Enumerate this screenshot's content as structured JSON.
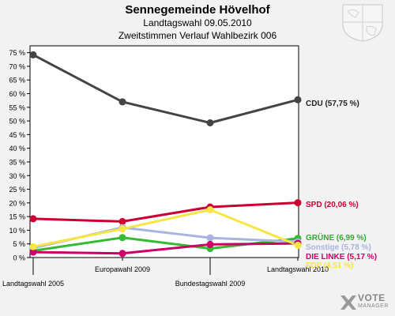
{
  "header": {
    "title": "Sennegemeinde Hövelhof",
    "subtitle": "Landtagswahl 09.05.2010",
    "subtitle2": "Zweitstimmen Verlauf Wahlbezirk 006"
  },
  "logo": {
    "line1": "VOTE",
    "line2": "MANAGER"
  },
  "chart_data": {
    "type": "line",
    "categories": [
      "Landtagswahl 2005",
      "Europawahl 2009",
      "Bundestagswahl 2009",
      "Landtagswahl 2010"
    ],
    "ylim": [
      0,
      77.5
    ],
    "yticks": [
      0,
      5,
      10,
      15,
      20,
      25,
      30,
      35,
      40,
      45,
      50,
      55,
      60,
      65,
      70,
      75
    ],
    "ytick_labels": [
      "0 %",
      "5 %",
      "10 %",
      "15 %",
      "20 %",
      "25 %",
      "30 %",
      "35 %",
      "40 %",
      "45 %",
      "50 %",
      "55 %",
      "60 %",
      "65 %",
      "70 %",
      "75 %"
    ],
    "grid": false,
    "series": [
      {
        "name": "CDU",
        "label": "CDU (57,75 %)",
        "color": "#444444",
        "label_color": "#222222",
        "values": [
          74.2,
          57.0,
          49.3,
          57.75
        ]
      },
      {
        "name": "SPD",
        "label": "SPD (20,06 %)",
        "color": "#cc0033",
        "label_color": "#cc0033",
        "values": [
          14.2,
          13.2,
          18.5,
          20.06
        ]
      },
      {
        "name": "GRÜNE",
        "label": "GRÜNE (6,99 %)",
        "color": "#33bb33",
        "label_color": "#33aa33",
        "values": [
          2.5,
          7.3,
          3.3,
          6.99
        ]
      },
      {
        "name": "Sonstige",
        "label": "Sonstige (5,78 %)",
        "color": "#aab4e0",
        "label_color": "#aab4e0",
        "values": [
          3.5,
          11.0,
          7.2,
          5.78
        ]
      },
      {
        "name": "DIE LINKE",
        "label": "DIE LINKE (5,17 %)",
        "color": "#cc0066",
        "label_color": "#cc0066",
        "values": [
          2.0,
          1.5,
          4.8,
          5.17
        ]
      },
      {
        "name": "FDP",
        "label": "FDP (4,51 %)",
        "color": "#f5e642",
        "label_color": "#f5e642",
        "values": [
          4.0,
          10.5,
          17.5,
          4.51
        ]
      }
    ]
  }
}
